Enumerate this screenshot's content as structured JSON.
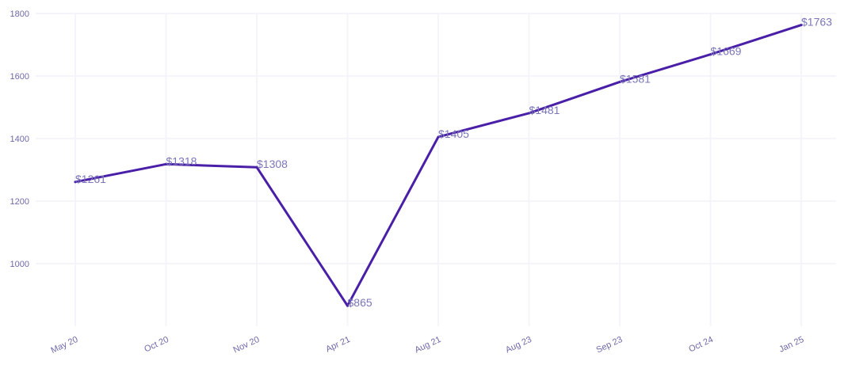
{
  "chart_data": {
    "type": "line",
    "title": "",
    "xlabel": "",
    "ylabel": "",
    "categories": [
      "May 20",
      "Oct 20",
      "Nov 20",
      "Apr 21",
      "Aug 21",
      "Aug 23",
      "Sep 23",
      "Oct 24",
      "Jan 25"
    ],
    "series": [
      {
        "values": [
          1261,
          1318,
          1308,
          865,
          1405,
          1481,
          1581,
          1669,
          1763
        ],
        "labels": [
          "$1261",
          "$1318",
          "$1308",
          "$865",
          "$1405",
          "$1481",
          "$1581",
          "$1669",
          "$1763"
        ]
      }
    ],
    "yticks": [
      1000,
      1200,
      1400,
      1600,
      1800
    ],
    "ylim": [
      840,
      1800
    ],
    "grid": true,
    "legend": "none",
    "colors": {
      "line": "#4a1fa8",
      "text": "#6f6aa8",
      "label": "#7b76b8",
      "grid": "#f4f4fa"
    }
  }
}
